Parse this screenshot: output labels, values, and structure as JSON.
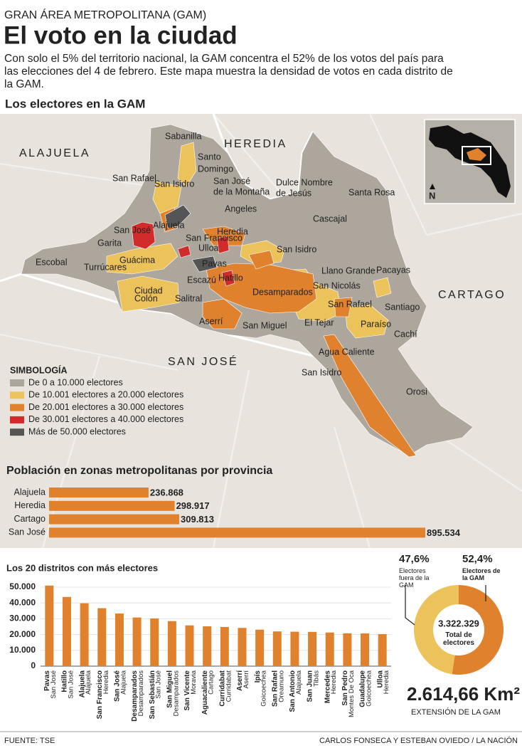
{
  "header": {
    "kicker": "GRAN ÁREA METROPOLITANA (GAM)",
    "title": "El voto en la ciudad",
    "intro": [
      "Con solo el 5% del territorio nacional, la GAM concentra el 52% de los votos del país para",
      "las elecciones del 4 de febrero. Este mapa muestra la densidad de votos en cada distrito de",
      "la GAM."
    ]
  },
  "map": {
    "title": "Los electores en la GAM",
    "provinces": [
      "ALAJUELA",
      "HEREDIA",
      "CARTAGO",
      "SAN JOSÉ"
    ],
    "districts": [
      "Sabanilla",
      "Santo",
      "Domingo",
      "San José",
      "de la Montaña",
      "Dulce Nombre",
      "de Jesús",
      "San Rafael",
      "San Isidro",
      "Santa Rosa",
      "Angeles",
      "Cascajal",
      "Alajuela",
      "San José",
      "Heredia",
      "San Francisco",
      "Ulloa",
      "Garita",
      "San Isidro",
      "Guácima",
      "Escobal",
      "Turrúcares",
      "Pavas",
      "Llano Grande",
      "Pacayas",
      "Escazú",
      "Hatillo",
      "Desamparados",
      "San Nicolás",
      "Ciudad",
      "Colón",
      "Salitral",
      "San Rafael",
      "Santiago",
      "Aserrí",
      "El Tejar",
      "San Miguel",
      "Paraíso",
      "Cachí",
      "Agua Caliente",
      "San Isidro",
      "Orosi"
    ],
    "north": "N",
    "legend": {
      "title": "SIMBOLOGÍA",
      "items": [
        {
          "label": "De 0 a 10.000 electores",
          "color": "#aca69c"
        },
        {
          "label": "De 10.001 electores a 20.000 electores",
          "color": "#ecc25a"
        },
        {
          "label": "De 20.001 electores a 30.000 electores",
          "color": "#e0812d"
        },
        {
          "label": "De 30.001 electores a 40.000 electores",
          "color": "#d22b2b"
        },
        {
          "label": "Más de 50.000 electores",
          "color": "#555555"
        }
      ]
    }
  },
  "chart_data": [
    {
      "type": "hbar",
      "title": "Población en zonas metropolitanas por provincia",
      "categories": [
        "Alajuela",
        "Heredia",
        "Cartago",
        "San José"
      ],
      "values": [
        236868,
        298917,
        309813,
        895534
      ],
      "value_labels": [
        "236.868",
        "298.917",
        "309.813",
        "895.534"
      ],
      "color": "#e0812d"
    },
    {
      "type": "bar",
      "title": "Los 20 distritos con más electores",
      "categories": [
        "Pavas",
        "Hatillo",
        "Alajuela",
        "San Francisco",
        "San José",
        "Desamparados",
        "San Sebastián",
        "San Miguel",
        "San Vicente",
        "Aguacaliente",
        "Curridabat",
        "Aserrí",
        "Ipís",
        "San Rafael",
        "San Antonio",
        "San Juan",
        "Mercedes",
        "San Pedro",
        "Guadalupe",
        "Ulloa"
      ],
      "sublabels": [
        "San José",
        "San José",
        "Alajuela",
        "Heredia",
        "Alajuela",
        "Desamparados",
        "San José",
        "Desamparados",
        "Moravia",
        "Cartago",
        "Curridabat",
        "Aserrí",
        "Goicoechea",
        "Oreamuno",
        "Alajuela",
        "Tibás",
        "Heredia",
        "Montes De Oca",
        "Goicoechea",
        "Heredia"
      ],
      "values": [
        51000,
        43800,
        39800,
        36700,
        33300,
        30800,
        30200,
        28500,
        25800,
        25200,
        24800,
        24200,
        23100,
        22000,
        21800,
        21700,
        21300,
        20800,
        20700,
        20300
      ],
      "color": "#e0812d",
      "ylim": [
        0,
        52000
      ],
      "yticks": [
        0,
        {
          "value": 10000,
          "label": "10.000"
        },
        {
          "value": 20000,
          "label": "20.000"
        },
        {
          "value": 30000,
          "label": "30.000"
        },
        {
          "value": 40000,
          "label": "40.000"
        },
        {
          "value": 50000,
          "label": "50.000"
        }
      ],
      "grid": true
    },
    {
      "type": "pie",
      "categories": [
        "Electores fuera de la GAM",
        "Electores de la GAM"
      ],
      "values": [
        47.6,
        52.4
      ],
      "value_labels": [
        "47,6%",
        "52,4%"
      ],
      "colors": [
        "#ecc25a",
        "#e0812d"
      ],
      "center_value": "3.322.329",
      "center_label": "Total de electores"
    }
  ],
  "extension": {
    "value": "2.614,66 Km²",
    "label": "EXTENSIÓN DE LA GAM"
  },
  "footer": {
    "source": "FUENTE: TSE",
    "credit": "CARLOS FONSECA Y ESTEBAN OVIEDO / LA NACIÓN"
  }
}
